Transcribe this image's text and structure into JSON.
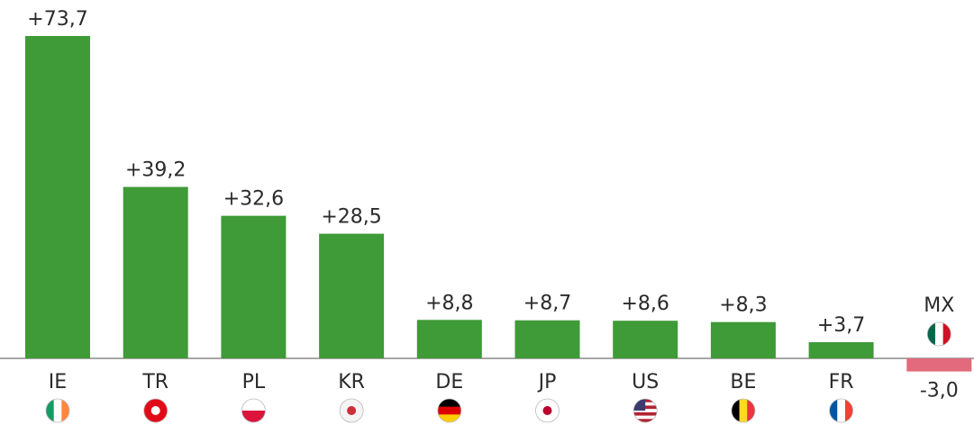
{
  "chart_data": {
    "type": "bar",
    "categories": [
      "IE",
      "TR",
      "PL",
      "KR",
      "DE",
      "JP",
      "US",
      "BE",
      "FR",
      "MX"
    ],
    "values": [
      73.7,
      39.2,
      32.6,
      28.5,
      8.8,
      8.7,
      8.6,
      8.3,
      3.7,
      -3.0
    ],
    "value_labels": [
      "+73,7",
      "+39,2",
      "+32,6",
      "+28,5",
      "+8,8",
      "+8,7",
      "+8,6",
      "+8,3",
      "+3,7",
      "-3,0"
    ],
    "color": "#3f9a38",
    "negative_color": "#e26a7c"
  }
}
